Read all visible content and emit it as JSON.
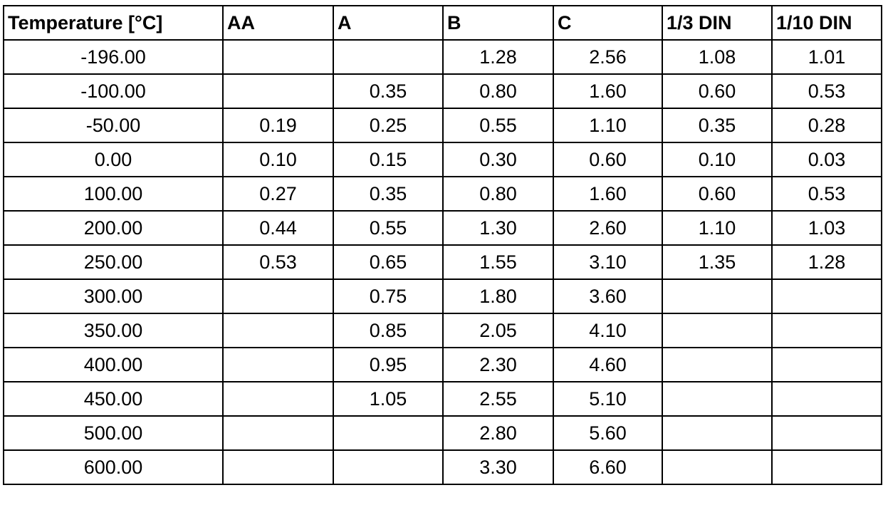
{
  "table": {
    "header": [
      "Temperature [°C]",
      "AA",
      "A",
      "B",
      "C",
      "1/3 DIN",
      "1/10 DIN"
    ],
    "rows": [
      [
        "-196.00",
        null,
        null,
        "1.28",
        "2.56",
        "1.08",
        "1.01"
      ],
      [
        "-100.00",
        null,
        "0.35",
        "0.80",
        "1.60",
        "0.60",
        "0.53"
      ],
      [
        "-50.00",
        "0.19",
        "0.25",
        "0.55",
        "1.10",
        "0.35",
        "0.28"
      ],
      [
        "0.00",
        "0.10",
        "0.15",
        "0.30",
        "0.60",
        "0.10",
        "0.03"
      ],
      [
        "100.00",
        "0.27",
        "0.35",
        "0.80",
        "1.60",
        "0.60",
        "0.53"
      ],
      [
        "200.00",
        "0.44",
        "0.55",
        "1.30",
        "2.60",
        "1.10",
        "1.03"
      ],
      [
        "250.00",
        "0.53",
        "0.65",
        "1.55",
        "3.10",
        "1.35",
        "1.28"
      ],
      [
        "300.00",
        null,
        "0.75",
        "1.80",
        "3.60",
        null,
        null
      ],
      [
        "350.00",
        null,
        "0.85",
        "2.05",
        "4.10",
        null,
        null
      ],
      [
        "400.00",
        null,
        "0.95",
        "2.30",
        "4.60",
        null,
        null
      ],
      [
        "450.00",
        null,
        "1.05",
        "2.55",
        "5.10",
        null,
        null
      ],
      [
        "500.00",
        null,
        null,
        "2.80",
        "5.60",
        null,
        null
      ],
      [
        "600.00",
        null,
        null,
        "3.30",
        "6.60",
        null,
        null
      ]
    ]
  }
}
